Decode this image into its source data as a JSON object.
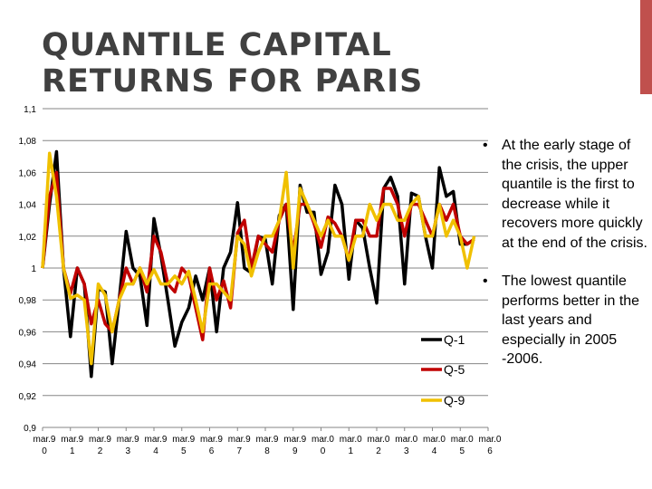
{
  "slide": {
    "title_line1": "QUANTILE CAPITAL",
    "title_line2": "RETURNS FOR PARIS",
    "accent_color": "#c0504d",
    "bullets": [
      "At the early stage of the crisis, the upper quantile is the first to decrease while it recovers more quickly at the end of the crisis.",
      "The lowest quantile performs better in the last years and especially in 2005 -2006."
    ]
  },
  "chart_data": {
    "type": "line",
    "ylim": [
      0.9,
      1.1
    ],
    "yticks": [
      "0,9",
      "0,92",
      "0,94",
      "0,96",
      "0,98",
      "1",
      "1,02",
      "1,04",
      "1,06",
      "1,08",
      "1,1"
    ],
    "xticks": [
      {
        "line1": "mar.9",
        "line2": "0"
      },
      {
        "line1": "mar.9",
        "line2": "1"
      },
      {
        "line1": "mar.9",
        "line2": "2"
      },
      {
        "line1": "mar.9",
        "line2": "3"
      },
      {
        "line1": "mar.9",
        "line2": "4"
      },
      {
        "line1": "mar.9",
        "line2": "5"
      },
      {
        "line1": "mar.9",
        "line2": "6"
      },
      {
        "line1": "mar.9",
        "line2": "7"
      },
      {
        "line1": "mar.9",
        "line2": "8"
      },
      {
        "line1": "mar.9",
        "line2": "9"
      },
      {
        "line1": "mar.0",
        "line2": "0"
      },
      {
        "line1": "mar.0",
        "line2": "1"
      },
      {
        "line1": "mar.0",
        "line2": "2"
      },
      {
        "line1": "mar.0",
        "line2": "3"
      },
      {
        "line1": "mar.0",
        "line2": "4"
      },
      {
        "line1": "mar.0",
        "line2": "5"
      },
      {
        "line1": "mar.0",
        "line2": "6"
      }
    ],
    "grid": true,
    "legend_position": "bottom-right",
    "x_points_per_tick": 4,
    "series": [
      {
        "name": "Q-1",
        "color": "#000000",
        "values": [
          1.0,
          1.04,
          1.073,
          1.0,
          0.957,
          1.0,
          0.99,
          0.932,
          0.987,
          0.985,
          0.94,
          0.98,
          1.023,
          1.0,
          0.995,
          0.964,
          1.031,
          1.008,
          0.98,
          0.951,
          0.966,
          0.975,
          0.995,
          0.98,
          1.0,
          0.96,
          1.0,
          1.01,
          1.041,
          1.0,
          0.997,
          1.02,
          1.018,
          0.99,
          1.033,
          1.04,
          0.974,
          1.052,
          1.035,
          1.035,
          0.996,
          1.01,
          1.052,
          1.04,
          0.993,
          1.03,
          1.025,
          1.0,
          0.978,
          1.05,
          1.057,
          1.045,
          0.99,
          1.047,
          1.045,
          1.02,
          1.0,
          1.063,
          1.045,
          1.048,
          1.015,
          1.015,
          1.018
        ]
      },
      {
        "name": "Q-5",
        "color": "#c00000",
        "values": [
          1.0,
          1.045,
          1.06,
          1.0,
          0.984,
          1.0,
          0.99,
          0.965,
          0.98,
          0.965,
          0.96,
          0.98,
          1.0,
          0.99,
          1.0,
          0.985,
          1.02,
          1.01,
          0.99,
          0.985,
          1.0,
          0.995,
          0.975,
          0.955,
          1.0,
          0.98,
          0.992,
          0.975,
          1.022,
          1.03,
          1.0,
          1.02,
          1.015,
          1.01,
          1.03,
          1.04,
          1.01,
          1.04,
          1.04,
          1.028,
          1.013,
          1.032,
          1.028,
          1.02,
          1.005,
          1.03,
          1.03,
          1.02,
          1.02,
          1.05,
          1.05,
          1.04,
          1.02,
          1.04,
          1.04,
          1.03,
          1.02,
          1.04,
          1.03,
          1.04,
          1.02,
          1.015,
          1.018
        ]
      },
      {
        "name": "Q-9",
        "color": "#f0c000",
        "values": [
          1.0,
          1.072,
          1.045,
          1.0,
          0.981,
          0.983,
          0.98,
          0.94,
          0.99,
          0.983,
          0.96,
          0.98,
          0.99,
          0.99,
          1.0,
          0.99,
          0.999,
          0.99,
          0.99,
          0.995,
          0.99,
          0.998,
          0.98,
          0.96,
          0.99,
          0.99,
          0.985,
          0.98,
          1.02,
          1.015,
          0.995,
          1.01,
          1.02,
          1.02,
          1.03,
          1.06,
          1.0,
          1.05,
          1.04,
          1.03,
          1.02,
          1.03,
          1.02,
          1.02,
          1.005,
          1.02,
          1.02,
          1.04,
          1.03,
          1.04,
          1.04,
          1.03,
          1.03,
          1.04,
          1.045,
          1.02,
          1.02,
          1.04,
          1.02,
          1.03,
          1.02,
          1.0,
          1.02
        ]
      }
    ]
  }
}
